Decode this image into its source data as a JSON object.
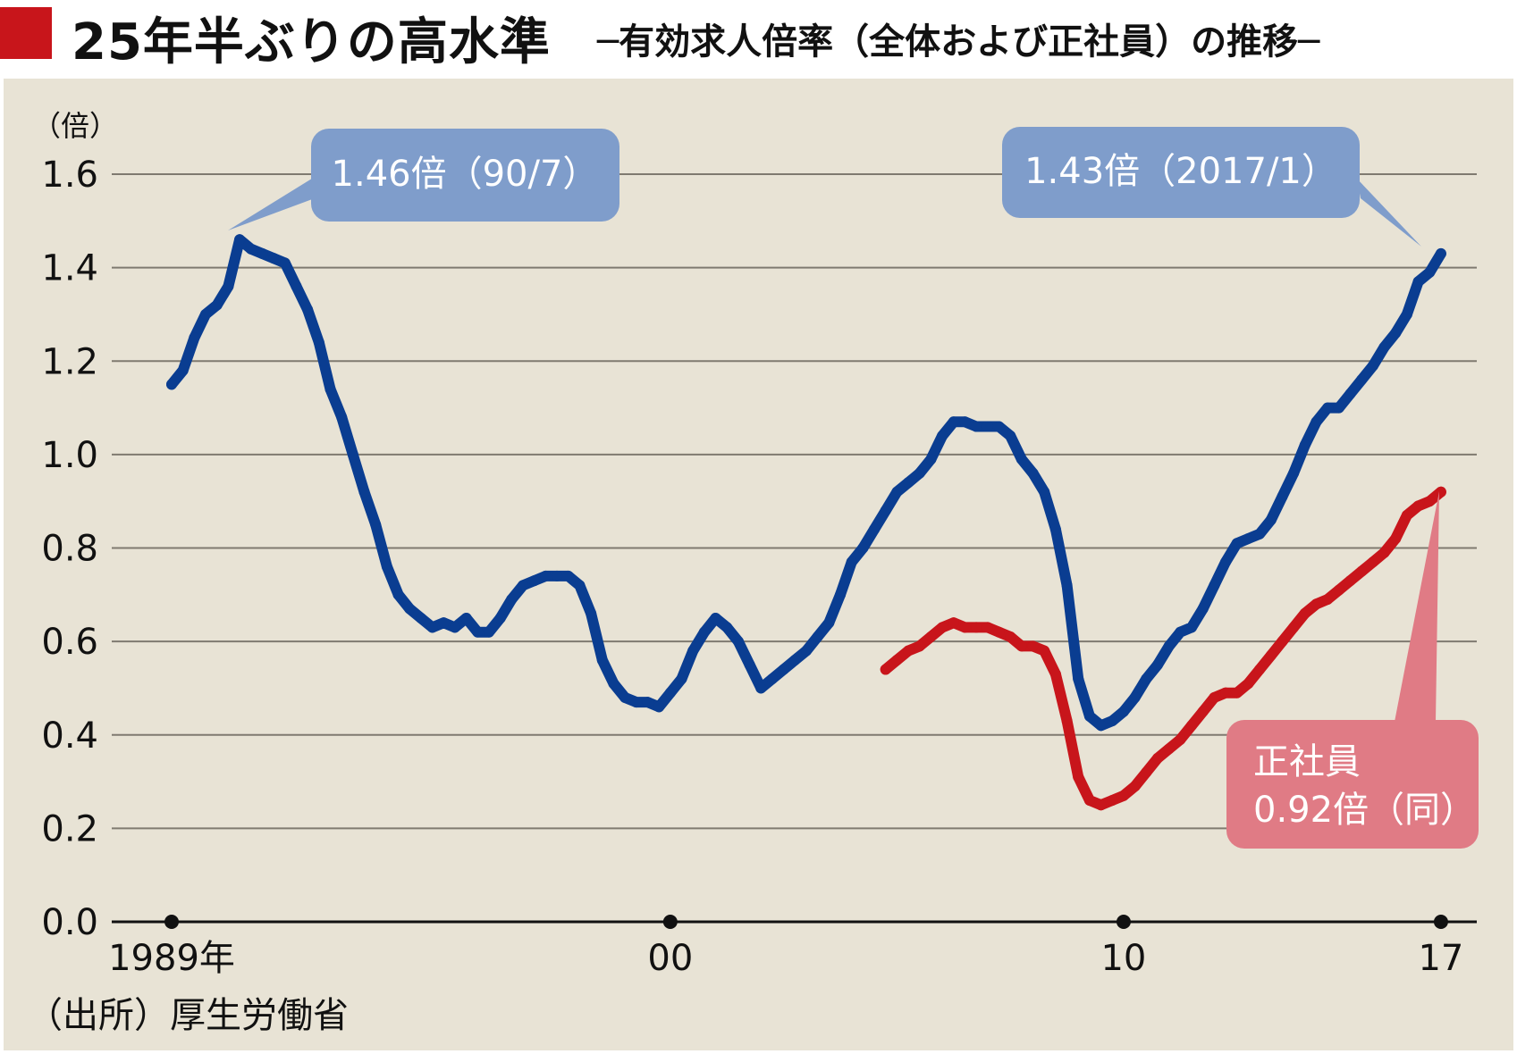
{
  "title": {
    "main": "25年半ぶりの高水準",
    "sub": "─有効求人倍率（全体および正社員）の推移─"
  },
  "source": "（出所）厚生労働省",
  "colors": {
    "title_square": "#c8151b",
    "background": "#e8e3d5",
    "series_all": "#0a3d91",
    "series_regular": "#c8151b",
    "callout_blue": "#7f9dcb",
    "callout_red": "#e07b85",
    "grid": "#7f7a70"
  },
  "annotations": {
    "peak_1990": "1.46倍（90/7）",
    "peak_2017": "1.43倍（2017/1）",
    "regular_line1": "正社員",
    "regular_line2": "0.92倍（同）"
  },
  "chart_data": {
    "type": "line",
    "title": "25年半ぶりの高水準",
    "ylabel": "（倍）",
    "ylim": [
      0,
      1.6
    ],
    "yticks": [
      0.0,
      0.2,
      0.4,
      0.6,
      0.8,
      1.0,
      1.2,
      1.4,
      1.6
    ],
    "ytick_labels": [
      "0.0",
      "0.2",
      "0.4",
      "0.6",
      "0.8",
      "1.0",
      "1.2",
      "1.4",
      "1.6"
    ],
    "xlim": [
      1989.0,
      2017.1
    ],
    "xticks": [
      1989,
      2000,
      2010,
      2017
    ],
    "xtick_labels": [
      "1989年",
      "00",
      "10",
      "17"
    ],
    "grid": true,
    "series": [
      {
        "name": "",
        "key": "all",
        "points": [
          [
            1989.0,
            1.15
          ],
          [
            1989.25,
            1.18
          ],
          [
            1989.5,
            1.25
          ],
          [
            1989.75,
            1.3
          ],
          [
            1990.0,
            1.32
          ],
          [
            1990.25,
            1.36
          ],
          [
            1990.5,
            1.46
          ],
          [
            1990.75,
            1.44
          ],
          [
            1991.0,
            1.43
          ],
          [
            1991.25,
            1.42
          ],
          [
            1991.5,
            1.41
          ],
          [
            1991.75,
            1.36
          ],
          [
            1992.0,
            1.31
          ],
          [
            1992.25,
            1.24
          ],
          [
            1992.5,
            1.14
          ],
          [
            1992.75,
            1.08
          ],
          [
            1993.0,
            1.0
          ],
          [
            1993.25,
            0.92
          ],
          [
            1993.5,
            0.85
          ],
          [
            1993.75,
            0.76
          ],
          [
            1994.0,
            0.7
          ],
          [
            1994.25,
            0.67
          ],
          [
            1994.5,
            0.65
          ],
          [
            1994.75,
            0.63
          ],
          [
            1995.0,
            0.64
          ],
          [
            1995.25,
            0.63
          ],
          [
            1995.5,
            0.65
          ],
          [
            1995.75,
            0.62
          ],
          [
            1996.0,
            0.62
          ],
          [
            1996.25,
            0.65
          ],
          [
            1996.5,
            0.69
          ],
          [
            1996.75,
            0.72
          ],
          [
            1997.0,
            0.73
          ],
          [
            1997.25,
            0.74
          ],
          [
            1997.5,
            0.74
          ],
          [
            1997.75,
            0.74
          ],
          [
            1998.0,
            0.72
          ],
          [
            1998.25,
            0.66
          ],
          [
            1998.5,
            0.56
          ],
          [
            1998.75,
            0.51
          ],
          [
            1999.0,
            0.48
          ],
          [
            1999.25,
            0.47
          ],
          [
            1999.5,
            0.47
          ],
          [
            1999.75,
            0.46
          ],
          [
            2000.0,
            0.49
          ],
          [
            2000.25,
            0.52
          ],
          [
            2000.5,
            0.58
          ],
          [
            2000.75,
            0.62
          ],
          [
            2001.0,
            0.65
          ],
          [
            2001.25,
            0.63
          ],
          [
            2001.5,
            0.6
          ],
          [
            2001.75,
            0.55
          ],
          [
            2002.0,
            0.5
          ],
          [
            2002.25,
            0.52
          ],
          [
            2002.5,
            0.54
          ],
          [
            2002.75,
            0.56
          ],
          [
            2003.0,
            0.58
          ],
          [
            2003.25,
            0.61
          ],
          [
            2003.5,
            0.64
          ],
          [
            2003.75,
            0.7
          ],
          [
            2004.0,
            0.77
          ],
          [
            2004.25,
            0.8
          ],
          [
            2004.5,
            0.84
          ],
          [
            2004.75,
            0.88
          ],
          [
            2005.0,
            0.92
          ],
          [
            2005.25,
            0.94
          ],
          [
            2005.5,
            0.96
          ],
          [
            2005.75,
            0.99
          ],
          [
            2006.0,
            1.04
          ],
          [
            2006.25,
            1.07
          ],
          [
            2006.5,
            1.07
          ],
          [
            2006.75,
            1.06
          ],
          [
            2007.0,
            1.06
          ],
          [
            2007.25,
            1.06
          ],
          [
            2007.5,
            1.04
          ],
          [
            2007.75,
            0.99
          ],
          [
            2008.0,
            0.96
          ],
          [
            2008.25,
            0.92
          ],
          [
            2008.5,
            0.84
          ],
          [
            2008.75,
            0.72
          ],
          [
            2009.0,
            0.52
          ],
          [
            2009.25,
            0.44
          ],
          [
            2009.5,
            0.42
          ],
          [
            2009.75,
            0.43
          ],
          [
            2010.0,
            0.45
          ],
          [
            2010.25,
            0.48
          ],
          [
            2010.5,
            0.52
          ],
          [
            2010.75,
            0.55
          ],
          [
            2011.0,
            0.59
          ],
          [
            2011.25,
            0.62
          ],
          [
            2011.5,
            0.63
          ],
          [
            2011.75,
            0.67
          ],
          [
            2012.0,
            0.72
          ],
          [
            2012.25,
            0.77
          ],
          [
            2012.5,
            0.81
          ],
          [
            2012.75,
            0.82
          ],
          [
            2013.0,
            0.83
          ],
          [
            2013.25,
            0.86
          ],
          [
            2013.5,
            0.91
          ],
          [
            2013.75,
            0.96
          ],
          [
            2014.0,
            1.02
          ],
          [
            2014.25,
            1.07
          ],
          [
            2014.5,
            1.1
          ],
          [
            2014.75,
            1.1
          ],
          [
            2015.0,
            1.13
          ],
          [
            2015.25,
            1.16
          ],
          [
            2015.5,
            1.19
          ],
          [
            2015.75,
            1.23
          ],
          [
            2016.0,
            1.26
          ],
          [
            2016.25,
            1.3
          ],
          [
            2016.5,
            1.37
          ],
          [
            2016.75,
            1.39
          ],
          [
            2017.0,
            1.43
          ]
        ]
      },
      {
        "name": "正社員",
        "key": "regular",
        "points": [
          [
            2004.75,
            0.54
          ],
          [
            2005.0,
            0.56
          ],
          [
            2005.25,
            0.58
          ],
          [
            2005.5,
            0.59
          ],
          [
            2005.75,
            0.61
          ],
          [
            2006.0,
            0.63
          ],
          [
            2006.25,
            0.64
          ],
          [
            2006.5,
            0.63
          ],
          [
            2006.75,
            0.63
          ],
          [
            2007.0,
            0.63
          ],
          [
            2007.25,
            0.62
          ],
          [
            2007.5,
            0.61
          ],
          [
            2007.75,
            0.59
          ],
          [
            2008.0,
            0.59
          ],
          [
            2008.25,
            0.58
          ],
          [
            2008.5,
            0.53
          ],
          [
            2008.75,
            0.43
          ],
          [
            2009.0,
            0.31
          ],
          [
            2009.25,
            0.26
          ],
          [
            2009.5,
            0.25
          ],
          [
            2009.75,
            0.26
          ],
          [
            2010.0,
            0.27
          ],
          [
            2010.25,
            0.29
          ],
          [
            2010.5,
            0.32
          ],
          [
            2010.75,
            0.35
          ],
          [
            2011.0,
            0.37
          ],
          [
            2011.25,
            0.39
          ],
          [
            2011.5,
            0.42
          ],
          [
            2011.75,
            0.45
          ],
          [
            2012.0,
            0.48
          ],
          [
            2012.25,
            0.49
          ],
          [
            2012.5,
            0.49
          ],
          [
            2012.75,
            0.51
          ],
          [
            2013.0,
            0.54
          ],
          [
            2013.25,
            0.57
          ],
          [
            2013.5,
            0.6
          ],
          [
            2013.75,
            0.63
          ],
          [
            2014.0,
            0.66
          ],
          [
            2014.25,
            0.68
          ],
          [
            2014.5,
            0.69
          ],
          [
            2014.75,
            0.71
          ],
          [
            2015.0,
            0.73
          ],
          [
            2015.25,
            0.75
          ],
          [
            2015.5,
            0.77
          ],
          [
            2015.75,
            0.79
          ],
          [
            2016.0,
            0.82
          ],
          [
            2016.25,
            0.87
          ],
          [
            2016.5,
            0.89
          ],
          [
            2016.75,
            0.9
          ],
          [
            2017.0,
            0.92
          ]
        ]
      }
    ]
  }
}
